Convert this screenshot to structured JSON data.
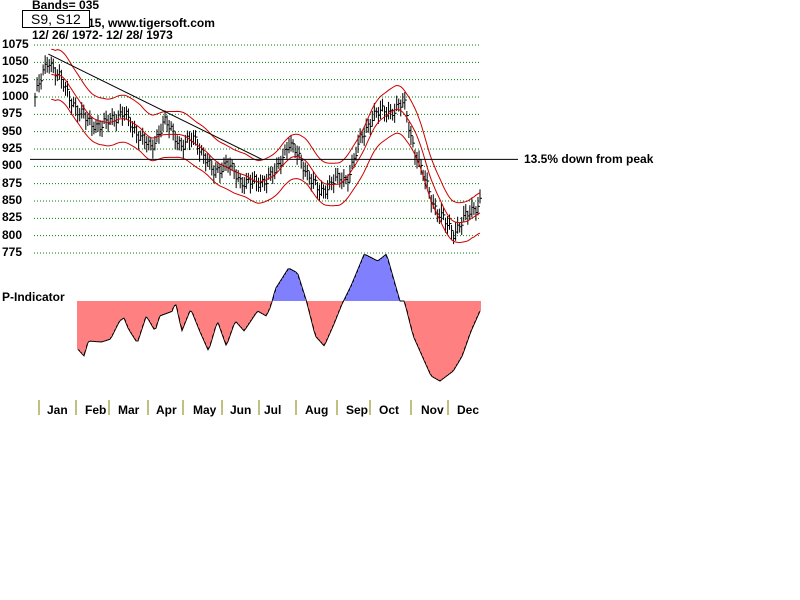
{
  "header": {
    "bands": "Bands=  035",
    "source": "15, www.tigersoft.com",
    "range": "12/ 26/ 1972- 12/ 28/ 1973",
    "signals": "S9, S12"
  },
  "annotation": "13.5% down from peak",
  "indicator_label": "P-Indicator",
  "colors": {
    "band": "#cc0000",
    "grid": "#008000",
    "pos": "#0000ff",
    "neg": "#ff0000",
    "month_tick": "#808000"
  },
  "chart_data": {
    "type": "bar",
    "title": "12/ 26/ 1972- 12/ 28/ 1973",
    "ylim": [
      775,
      1075
    ],
    "yticks": [
      "1075",
      "1050",
      "1025",
      "1000",
      "975",
      "950",
      "925",
      "900",
      "875",
      "850",
      "825",
      "800",
      "775"
    ],
    "months": [
      "Jan",
      "Feb",
      "Mar",
      "Apr",
      "May",
      "Jun",
      "Jul",
      "Aug",
      "Sep",
      "Oct",
      "Nov",
      "Dec"
    ],
    "price_path": [
      [
        0,
        1000
      ],
      [
        0.03,
        1055
      ],
      [
        0.07,
        1010
      ],
      [
        0.1,
        975
      ],
      [
        0.15,
        955
      ],
      [
        0.17,
        970
      ],
      [
        0.2,
        975
      ],
      [
        0.24,
        940
      ],
      [
        0.26,
        925
      ],
      [
        0.29,
        965
      ],
      [
        0.33,
        930
      ],
      [
        0.36,
        940
      ],
      [
        0.4,
        890
      ],
      [
        0.43,
        905
      ],
      [
        0.46,
        880
      ],
      [
        0.5,
        875
      ],
      [
        0.54,
        890
      ],
      [
        0.57,
        935
      ],
      [
        0.6,
        905
      ],
      [
        0.64,
        860
      ],
      [
        0.67,
        880
      ],
      [
        0.7,
        880
      ],
      [
        0.73,
        935
      ],
      [
        0.76,
        975
      ],
      [
        0.8,
        980
      ],
      [
        0.83,
        990
      ],
      [
        0.85,
        930
      ],
      [
        0.87,
        890
      ],
      [
        0.9,
        840
      ],
      [
        0.92,
        820
      ],
      [
        0.94,
        805
      ],
      [
        0.96,
        820
      ],
      [
        1,
        850
      ]
    ],
    "peak_level": 910,
    "p_indicator": [
      [
        0.1,
        -50
      ],
      [
        0.11,
        -55
      ],
      [
        0.12,
        -40
      ],
      [
        0.15,
        -41
      ],
      [
        0.17,
        -38
      ],
      [
        0.19,
        -20
      ],
      [
        0.2,
        -17
      ],
      [
        0.21,
        -28
      ],
      [
        0.23,
        -42
      ],
      [
        0.25,
        -15
      ],
      [
        0.27,
        -30
      ],
      [
        0.28,
        -15
      ],
      [
        0.31,
        -10
      ],
      [
        0.315,
        0
      ],
      [
        0.33,
        -30
      ],
      [
        0.35,
        -8
      ],
      [
        0.37,
        -30
      ],
      [
        0.39,
        -50
      ],
      [
        0.41,
        -20
      ],
      [
        0.43,
        -45
      ],
      [
        0.45,
        -20
      ],
      [
        0.47,
        -30
      ],
      [
        0.5,
        -10
      ],
      [
        0.52,
        -15
      ],
      [
        0.53,
        -5
      ],
      [
        0.54,
        12
      ],
      [
        0.57,
        33
      ],
      [
        0.59,
        28
      ],
      [
        0.61,
        0
      ],
      [
        0.63,
        -35
      ],
      [
        0.65,
        -45
      ],
      [
        0.67,
        -25
      ],
      [
        0.69,
        -3
      ],
      [
        0.71,
        15
      ],
      [
        0.74,
        47
      ],
      [
        0.77,
        40
      ],
      [
        0.79,
        47
      ],
      [
        0.82,
        0
      ],
      [
        0.83,
        0
      ],
      [
        0.85,
        -35
      ],
      [
        0.87,
        -55
      ],
      [
        0.89,
        -75
      ],
      [
        0.91,
        -80
      ],
      [
        0.94,
        -70
      ],
      [
        0.96,
        -55
      ],
      [
        0.98,
        -30
      ],
      [
        1,
        -10
      ]
    ]
  }
}
